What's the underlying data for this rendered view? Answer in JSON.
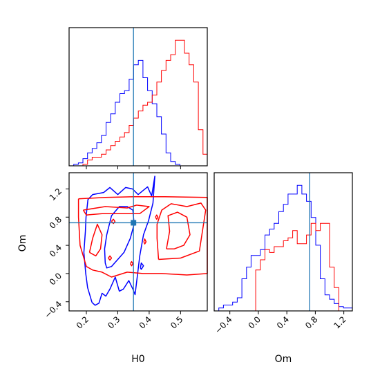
{
  "colors": {
    "series_blue": "#0000ff",
    "series_red": "#ff0000",
    "truth": "#1f77b4",
    "frame": "#000000"
  },
  "chart_data": [
    {
      "type": "histogram",
      "panel": "H0 marginal",
      "xlim": [
        0.145,
        0.585
      ],
      "x_ticks": [
        0.2,
        0.3,
        0.4,
        0.5
      ],
      "truth_x": 0.35,
      "bin_width": 0.0147,
      "series": [
        {
          "color": "#0000ff",
          "values": [
            0,
            0.01,
            0.02,
            0.05,
            0.09,
            0.12,
            0.16,
            0.21,
            0.3,
            0.36,
            0.44,
            0.5,
            0.52,
            0.6,
            0.7,
            0.73,
            0.61,
            0.52,
            0.43,
            0.34,
            0.22,
            0.09,
            0.03,
            0.01,
            0.0,
            0,
            0,
            0,
            0,
            0
          ]
        },
        {
          "color": "#ff0000",
          "values": [
            0,
            0,
            0.0,
            0.01,
            0.04,
            0.06,
            0.06,
            0.08,
            0.11,
            0.14,
            0.17,
            0.2,
            0.23,
            0.28,
            0.33,
            0.38,
            0.42,
            0.44,
            0.49,
            0.58,
            0.66,
            0.73,
            0.77,
            0.87,
            0.87,
            0.78,
            0.7,
            0.58,
            0.25,
            0.08
          ]
        }
      ]
    },
    {
      "type": "contour",
      "panel": "Om vs H0",
      "xlabel": "H0",
      "ylabel": "Om",
      "xlim": [
        0.145,
        0.585
      ],
      "ylim": [
        -0.53,
        1.43
      ],
      "x_ticks": [
        0.2,
        0.3,
        0.4,
        0.5
      ],
      "y_ticks": [
        -0.4,
        0.0,
        0.4,
        0.8,
        1.2
      ],
      "truth": [
        0.35,
        0.72
      ],
      "series": [
        {
          "color": "#0000ff",
          "contours": [
            [
              [
                0.218,
                -0.41
              ],
              [
                0.204,
                -0.2
              ],
              [
                0.198,
                0.0
              ],
              [
                0.192,
                0.3
              ],
              [
                0.197,
                0.6
              ],
              [
                0.199,
                0.8
              ],
              [
                0.205,
                1.05
              ],
              [
                0.22,
                1.12
              ],
              [
                0.255,
                1.15
              ],
              [
                0.275,
                1.22
              ],
              [
                0.3,
                1.12
              ],
              [
                0.325,
                1.22
              ],
              [
                0.347,
                1.2
              ],
              [
                0.365,
                1.12
              ],
              [
                0.395,
                1.23
              ],
              [
                0.408,
                1.1
              ],
              [
                0.418,
                1.38
              ],
              [
                0.412,
                1.0
              ],
              [
                0.398,
                0.75
              ],
              [
                0.382,
                0.55
              ],
              [
                0.37,
                0.25
              ],
              [
                0.362,
                -0.05
              ],
              [
                0.355,
                -0.3
              ],
              [
                0.348,
                -0.22
              ],
              [
                0.335,
                -0.1
              ],
              [
                0.318,
                -0.22
              ],
              [
                0.305,
                -0.25
              ],
              [
                0.292,
                -0.05
              ],
              [
                0.275,
                -0.22
              ],
              [
                0.262,
                -0.32
              ],
              [
                0.25,
                -0.28
              ],
              [
                0.24,
                -0.42
              ],
              [
                0.228,
                -0.45
              ],
              [
                0.218,
                -0.41
              ]
            ],
            [
              [
                0.26,
                0.15
              ],
              [
                0.258,
                0.35
              ],
              [
                0.265,
                0.55
              ],
              [
                0.28,
                0.82
              ],
              [
                0.305,
                0.95
              ],
              [
                0.33,
                0.95
              ],
              [
                0.348,
                0.9
              ],
              [
                0.352,
                0.7
              ],
              [
                0.34,
                0.5
              ],
              [
                0.32,
                0.3
              ],
              [
                0.3,
                0.2
              ],
              [
                0.28,
                0.1
              ],
              [
                0.265,
                0.08
              ],
              [
                0.26,
                0.15
              ]
            ],
            [
              [
                0.372,
                0.08
              ],
              [
                0.375,
                0.15
              ],
              [
                0.382,
                0.11
              ],
              [
                0.375,
                0.06
              ],
              [
                0.372,
                0.08
              ]
            ]
          ]
        },
        {
          "color": "#ff0000",
          "contours": [
            [
              [
                0.175,
                1.06
              ],
              [
                0.26,
                1.08
              ],
              [
                0.35,
                1.09
              ],
              [
                0.45,
                1.09
              ],
              [
                0.585,
                1.08
              ],
              [
                0.585,
                0.0
              ],
              [
                0.52,
                -0.02
              ],
              [
                0.44,
                0.0
              ],
              [
                0.38,
                0.0
              ],
              [
                0.33,
                0.02
              ],
              [
                0.28,
                -0.05
              ],
              [
                0.25,
                0.02
              ],
              [
                0.22,
                0.05
              ],
              [
                0.2,
                0.1
              ],
              [
                0.18,
                0.4
              ],
              [
                0.175,
                0.8
              ],
              [
                0.175,
                1.06
              ]
            ],
            [
              [
                0.19,
                0.9
              ],
              [
                0.26,
                0.95
              ],
              [
                0.33,
                0.93
              ],
              [
                0.36,
                0.97
              ],
              [
                0.4,
                0.95
              ],
              [
                0.37,
                0.85
              ],
              [
                0.32,
                0.85
              ],
              [
                0.25,
                0.85
              ],
              [
                0.2,
                0.83
              ],
              [
                0.19,
                0.9
              ]
            ],
            [
              [
                0.43,
                0.2
              ],
              [
                0.5,
                0.22
              ],
              [
                0.56,
                0.32
              ],
              [
                0.58,
                0.9
              ],
              [
                0.565,
                1.0
              ],
              [
                0.52,
                0.95
              ],
              [
                0.47,
                0.99
              ],
              [
                0.44,
                0.9
              ],
              [
                0.425,
                0.7
              ],
              [
                0.425,
                0.5
              ],
              [
                0.43,
                0.2
              ]
            ],
            [
              [
                0.455,
                0.35
              ],
              [
                0.465,
                0.6
              ],
              [
                0.46,
                0.82
              ],
              [
                0.49,
                0.87
              ],
              [
                0.52,
                0.8
              ],
              [
                0.53,
                0.55
              ],
              [
                0.51,
                0.4
              ],
              [
                0.48,
                0.35
              ],
              [
                0.455,
                0.35
              ]
            ],
            [
              [
                0.21,
                0.3
              ],
              [
                0.22,
                0.5
              ],
              [
                0.235,
                0.7
              ],
              [
                0.25,
                0.55
              ],
              [
                0.245,
                0.35
              ],
              [
                0.23,
                0.25
              ],
              [
                0.21,
                0.3
              ]
            ],
            [
              [
                0.28,
                0.74
              ],
              [
                0.286,
                0.77
              ],
              [
                0.291,
                0.74
              ],
              [
                0.286,
                0.71
              ],
              [
                0.28,
                0.74
              ]
            ],
            [
              [
                0.42,
                0.8
              ],
              [
                0.424,
                0.83
              ],
              [
                0.428,
                0.8
              ],
              [
                0.424,
                0.77
              ],
              [
                0.42,
                0.8
              ]
            ],
            [
              [
                0.383,
                0.45
              ],
              [
                0.386,
                0.49
              ],
              [
                0.39,
                0.45
              ],
              [
                0.386,
                0.42
              ],
              [
                0.383,
                0.45
              ]
            ],
            [
              [
                0.27,
                0.22
              ],
              [
                0.275,
                0.25
              ],
              [
                0.28,
                0.22
              ],
              [
                0.275,
                0.19
              ],
              [
                0.27,
                0.22
              ]
            ],
            [
              [
                0.34,
                0.14
              ],
              [
                0.344,
                0.17
              ],
              [
                0.348,
                0.14
              ],
              [
                0.344,
                0.11
              ],
              [
                0.34,
                0.14
              ]
            ]
          ]
        }
      ]
    },
    {
      "type": "histogram",
      "panel": "Om marginal",
      "xlabel": "Om",
      "xlim": [
        -0.62,
        1.32
      ],
      "x_ticks": [
        -0.4,
        0.0,
        0.4,
        0.8,
        1.2
      ],
      "truth_x": 0.72,
      "bin_width": 0.0648,
      "series": [
        {
          "color": "#0000ff",
          "values": [
            0,
            0.02,
            0.04,
            0.04,
            0.06,
            0.09,
            0.22,
            0.3,
            0.38,
            0.38,
            0.42,
            0.52,
            0.56,
            0.6,
            0.68,
            0.73,
            0.8,
            0.8,
            0.86,
            0.8,
            0.75,
            0.64,
            0.45,
            0.22,
            0.11,
            0.08,
            0.05,
            0.03,
            0.02,
            0.02
          ]
        },
        {
          "color": "#ff0000",
          "values": [
            0,
            0,
            0,
            0,
            0,
            0,
            0,
            0,
            0,
            0.28,
            0.35,
            0.42,
            0.4,
            0.44,
            0.44,
            0.48,
            0.5,
            0.55,
            0.46,
            0.46,
            0.52,
            0.6,
            0.55,
            0.6,
            0.6,
            0.3,
            0.16,
            0.0,
            0,
            0
          ]
        }
      ]
    }
  ]
}
